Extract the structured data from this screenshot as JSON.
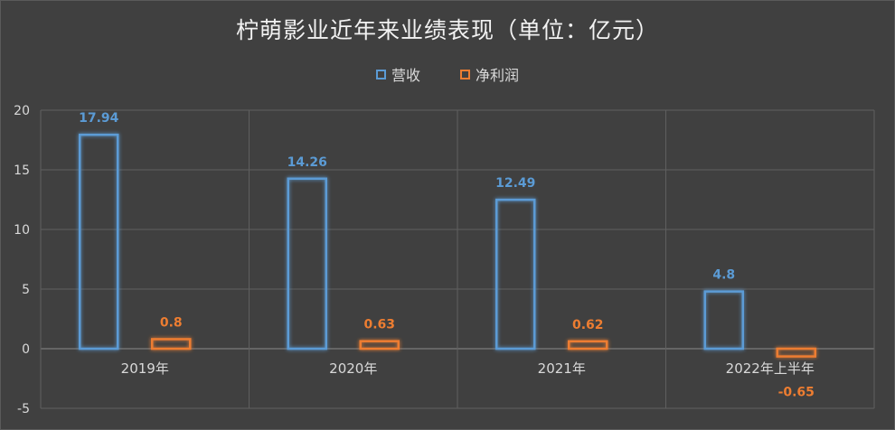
{
  "chart_data": {
    "type": "bar",
    "title": "柠萌影业近年来业绩表现（单位：亿元）",
    "categories": [
      "2019年",
      "2020年",
      "2021年",
      "2022年上半年"
    ],
    "series": [
      {
        "name": "营收",
        "values": [
          17.94,
          14.26,
          12.49,
          4.8
        ],
        "color": "#5b9bd5"
      },
      {
        "name": "净利润",
        "values": [
          0.8,
          0.63,
          0.62,
          -0.65
        ],
        "color": "#ed7d31"
      }
    ],
    "value_labels": [
      [
        "17.94",
        "14.26",
        "12.49",
        "4.8"
      ],
      [
        "0.8",
        "0.63",
        "0.62",
        "-0.65"
      ]
    ],
    "ylim": [
      -5,
      20
    ],
    "yticks": [
      "20",
      "15",
      "10",
      "5",
      "0",
      "-5"
    ],
    "ytick_values": [
      20,
      15,
      10,
      5,
      0,
      -5
    ],
    "grid": true,
    "legend_position": "top"
  }
}
